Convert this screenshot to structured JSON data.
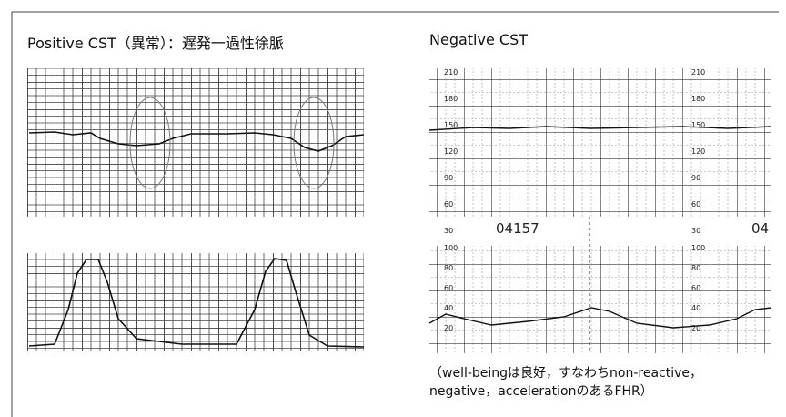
{
  "left": {
    "title": "Positive CST（異常）：遅発一過性徐脈"
  },
  "right": {
    "title": "Negative CST",
    "fhr_scale": [
      "210",
      "180",
      "150",
      "120",
      "90",
      "60",
      "30"
    ],
    "strip_number": "04157",
    "strip_number_cut": "04",
    "uc_scale": [
      "100",
      "80",
      "60",
      "40",
      "20"
    ],
    "caption": [
      "（well-beingは良好，すなわちnon-reactive，",
      "negative，accelerationのあるFHR）"
    ]
  }
}
